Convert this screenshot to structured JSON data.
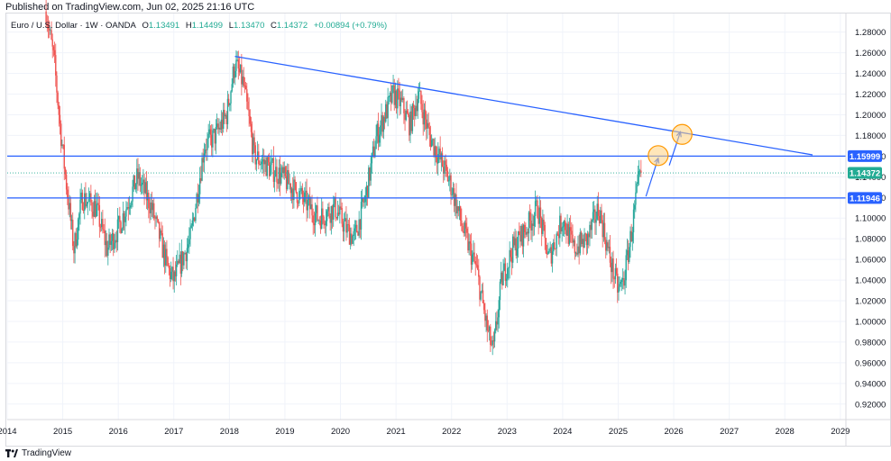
{
  "header": {
    "published": "Published on TradingView.com, Jun 02, 2025 21:16 UTC"
  },
  "legend": {
    "symbol": "Euro / U.S. Dollar · 1W · OANDA",
    "open_label": "O",
    "open": "1.13491",
    "high_label": "H",
    "high": "1.14499",
    "low_label": "L",
    "low": "1.13470",
    "close_label": "C",
    "close": "1.14372",
    "change": "+0.00894 (+0.79%)"
  },
  "footer": {
    "brand": "TradingView"
  },
  "colors": {
    "up": "#26a69a",
    "down": "#ef5350",
    "trendline": "#2962ff",
    "hline": "#2962ff",
    "price_badge": "#22ab94",
    "level_badge": "#2962ff",
    "circle_fill": "#ffd180",
    "circle_stroke": "#ff9800"
  },
  "chart_data": {
    "type": "candlestick",
    "symbol": "EURUSD",
    "timeframe": "1W",
    "x_range": [
      2014.0,
      2029.1
    ],
    "y_range": [
      0.905,
      1.298
    ],
    "x_ticks": [
      "2014",
      "2015",
      "2016",
      "2017",
      "2018",
      "2019",
      "2020",
      "2021",
      "2022",
      "2023",
      "2024",
      "2025",
      "2026",
      "2027",
      "2028",
      "2029"
    ],
    "x_tick_values": [
      2014,
      2015,
      2016,
      2017,
      2018,
      2019,
      2020,
      2021,
      2022,
      2023,
      2024,
      2025,
      2026,
      2027,
      2028,
      2029
    ],
    "y_ticks": [
      "1.28000",
      "1.26000",
      "1.24000",
      "1.22000",
      "1.20000",
      "1.18000",
      "1.16000",
      "1.14000",
      "1.12000",
      "1.10000",
      "1.08000",
      "1.06000",
      "1.04000",
      "1.02000",
      "1.00000",
      "0.98000",
      "0.96000",
      "0.94000",
      "0.92000"
    ],
    "y_tick_values": [
      1.28,
      1.26,
      1.24,
      1.22,
      1.2,
      1.18,
      1.16,
      1.14,
      1.12,
      1.1,
      1.08,
      1.06,
      1.04,
      1.02,
      1.0,
      0.98,
      0.96,
      0.94,
      0.92
    ],
    "price_path": [
      [
        2014.7,
        1.3
      ],
      [
        2014.85,
        1.25
      ],
      [
        2014.95,
        1.19
      ],
      [
        2015.05,
        1.14
      ],
      [
        2015.2,
        1.07
      ],
      [
        2015.35,
        1.12
      ],
      [
        2015.6,
        1.11
      ],
      [
        2015.8,
        1.07
      ],
      [
        2016.0,
        1.09
      ],
      [
        2016.35,
        1.14
      ],
      [
        2016.6,
        1.11
      ],
      [
        2016.9,
        1.05
      ],
      [
        2017.0,
        1.04
      ],
      [
        2017.3,
        1.08
      ],
      [
        2017.55,
        1.17
      ],
      [
        2017.75,
        1.18
      ],
      [
        2017.95,
        1.2
      ],
      [
        2018.1,
        1.25
      ],
      [
        2018.25,
        1.23
      ],
      [
        2018.45,
        1.16
      ],
      [
        2018.7,
        1.15
      ],
      [
        2018.95,
        1.14
      ],
      [
        2019.3,
        1.12
      ],
      [
        2019.6,
        1.1
      ],
      [
        2019.9,
        1.11
      ],
      [
        2020.1,
        1.09
      ],
      [
        2020.25,
        1.08
      ],
      [
        2020.45,
        1.12
      ],
      [
        2020.65,
        1.18
      ],
      [
        2020.95,
        1.22
      ],
      [
        2021.1,
        1.21
      ],
      [
        2021.25,
        1.19
      ],
      [
        2021.4,
        1.22
      ],
      [
        2021.6,
        1.18
      ],
      [
        2021.85,
        1.15
      ],
      [
        2022.0,
        1.13
      ],
      [
        2022.2,
        1.09
      ],
      [
        2022.45,
        1.05
      ],
      [
        2022.65,
        0.99
      ],
      [
        2022.75,
        0.97
      ],
      [
        2022.9,
        1.04
      ],
      [
        2023.1,
        1.07
      ],
      [
        2023.35,
        1.09
      ],
      [
        2023.55,
        1.11
      ],
      [
        2023.75,
        1.06
      ],
      [
        2024.0,
        1.1
      ],
      [
        2024.2,
        1.07
      ],
      [
        2024.45,
        1.08
      ],
      [
        2024.65,
        1.11
      ],
      [
        2024.85,
        1.06
      ],
      [
        2025.0,
        1.03
      ],
      [
        2025.1,
        1.04
      ],
      [
        2025.25,
        1.09
      ],
      [
        2025.35,
        1.13
      ],
      [
        2025.42,
        1.14372
      ]
    ],
    "last_price": 1.14372,
    "horizontal_levels": [
      1.15999,
      1.11946
    ],
    "trendline": {
      "start": [
        2018.1,
        1.2565
      ],
      "end": [
        2028.5,
        1.1612
      ]
    },
    "projection_arrows": [
      {
        "from": [
          2025.5,
          1.121
        ],
        "to": [
          2025.72,
          1.158
        ]
      },
      {
        "from": [
          2025.92,
          1.151
        ],
        "to": [
          2026.12,
          1.1835
        ]
      }
    ],
    "target_circles": [
      {
        "center": [
          2025.72,
          1.1605
        ],
        "label": ""
      },
      {
        "center": [
          2026.15,
          1.181
        ],
        "label": ""
      }
    ]
  }
}
